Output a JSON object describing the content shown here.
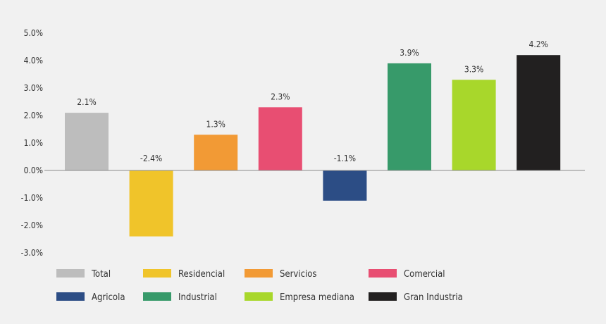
{
  "chart_data": {
    "type": "bar",
    "categories": [
      "Total",
      "Residencial",
      "Servicios",
      "Comercial",
      "Agricola",
      "Industrial",
      "Empresa mediana",
      "Gran Industria"
    ],
    "values": [
      2.1,
      -2.4,
      1.3,
      2.3,
      -1.1,
      3.9,
      3.3,
      4.2
    ],
    "data_labels": [
      "2.1%",
      "-2.4%",
      "1.3%",
      "2.3%",
      "-1.1%",
      "3.9%",
      "3.3%",
      "4.2%"
    ],
    "colors": [
      "#bdbdbd",
      "#f0c42a",
      "#f29a35",
      "#e84e72",
      "#2c4d85",
      "#379a6a",
      "#a8d72b",
      "#222020"
    ],
    "ylim": [
      -3,
      5
    ],
    "yticks": [
      5,
      4,
      3,
      2,
      1,
      0,
      -1,
      -2,
      -3
    ],
    "ytick_labels": [
      "5.0%",
      "4.0%",
      "3.0%",
      "2.0%",
      "1.0%",
      "0.0%",
      "-1.0%",
      "-2.0%",
      "-3.0%"
    ],
    "legend": {
      "position": "bottom",
      "items": [
        {
          "label": "Total",
          "color": "#bdbdbd"
        },
        {
          "label": "Residencial",
          "color": "#f0c42a"
        },
        {
          "label": "Servicios",
          "color": "#f29a35"
        },
        {
          "label": "Comercial",
          "color": "#e84e72"
        },
        {
          "label": "Agricola",
          "color": "#2c4d85"
        },
        {
          "label": "Industrial",
          "color": "#379a6a"
        },
        {
          "label": "Empresa mediana",
          "color": "#a8d72b"
        },
        {
          "label": "Gran Industria",
          "color": "#222020"
        }
      ]
    },
    "grid": false,
    "title": "",
    "xlabel": "",
    "ylabel": ""
  }
}
